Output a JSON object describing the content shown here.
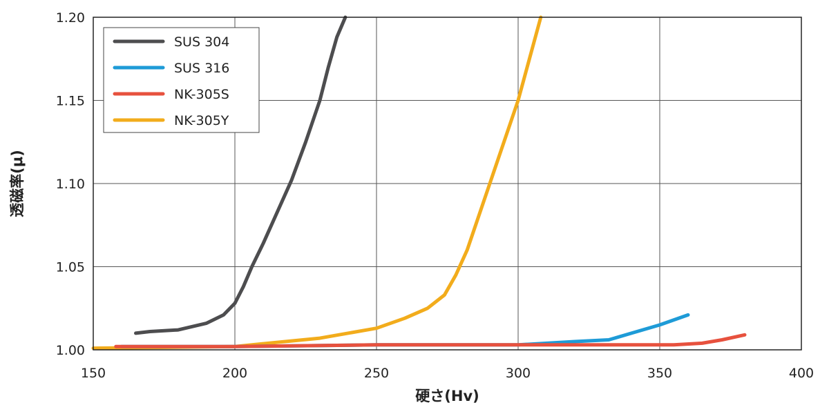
{
  "chart_data": {
    "type": "line",
    "title": "",
    "xlabel": "硬さ(Hv)",
    "ylabel": "透磁率(μ)",
    "xlim": [
      150,
      400
    ],
    "ylim": [
      1.0,
      1.2
    ],
    "x_ticks": [
      "150",
      "200",
      "250",
      "300",
      "350",
      "400"
    ],
    "y_ticks": [
      "1.00",
      "1.05",
      "1.10",
      "1.15",
      "1.20"
    ],
    "grid": true,
    "legend_position": "top-left",
    "series": [
      {
        "name": "SUS 304",
        "color": "#4d4d4f",
        "points": [
          [
            165,
            1.01
          ],
          [
            170,
            1.011
          ],
          [
            180,
            1.012
          ],
          [
            190,
            1.016
          ],
          [
            196,
            1.021
          ],
          [
            200,
            1.028
          ],
          [
            203,
            1.038
          ],
          [
            206,
            1.05
          ],
          [
            210,
            1.064
          ],
          [
            215,
            1.083
          ],
          [
            220,
            1.102
          ],
          [
            225,
            1.125
          ],
          [
            230,
            1.15
          ],
          [
            233,
            1.17
          ],
          [
            236,
            1.188
          ],
          [
            239,
            1.2
          ]
        ]
      },
      {
        "name": "SUS 316",
        "color": "#1e9bd7",
        "points": [
          [
            160,
            1.002
          ],
          [
            200,
            1.002
          ],
          [
            250,
            1.003
          ],
          [
            300,
            1.003
          ],
          [
            320,
            1.005
          ],
          [
            332,
            1.006
          ],
          [
            340,
            1.01
          ],
          [
            350,
            1.015
          ],
          [
            360,
            1.021
          ]
        ]
      },
      {
        "name": "NK-305S",
        "color": "#e7513e",
        "points": [
          [
            158,
            1.002
          ],
          [
            200,
            1.002
          ],
          [
            250,
            1.003
          ],
          [
            300,
            1.003
          ],
          [
            340,
            1.003
          ],
          [
            355,
            1.003
          ],
          [
            365,
            1.004
          ],
          [
            372,
            1.006
          ],
          [
            380,
            1.009
          ]
        ]
      },
      {
        "name": "NK-305Y",
        "color": "#f2ac1c",
        "points": [
          [
            150,
            1.001
          ],
          [
            200,
            1.002
          ],
          [
            230,
            1.007
          ],
          [
            250,
            1.013
          ],
          [
            260,
            1.019
          ],
          [
            268,
            1.025
          ],
          [
            274,
            1.033
          ],
          [
            278,
            1.045
          ],
          [
            282,
            1.06
          ],
          [
            286,
            1.08
          ],
          [
            290,
            1.1
          ],
          [
            295,
            1.125
          ],
          [
            300,
            1.15
          ],
          [
            304,
            1.175
          ],
          [
            308,
            1.2
          ]
        ]
      }
    ]
  }
}
